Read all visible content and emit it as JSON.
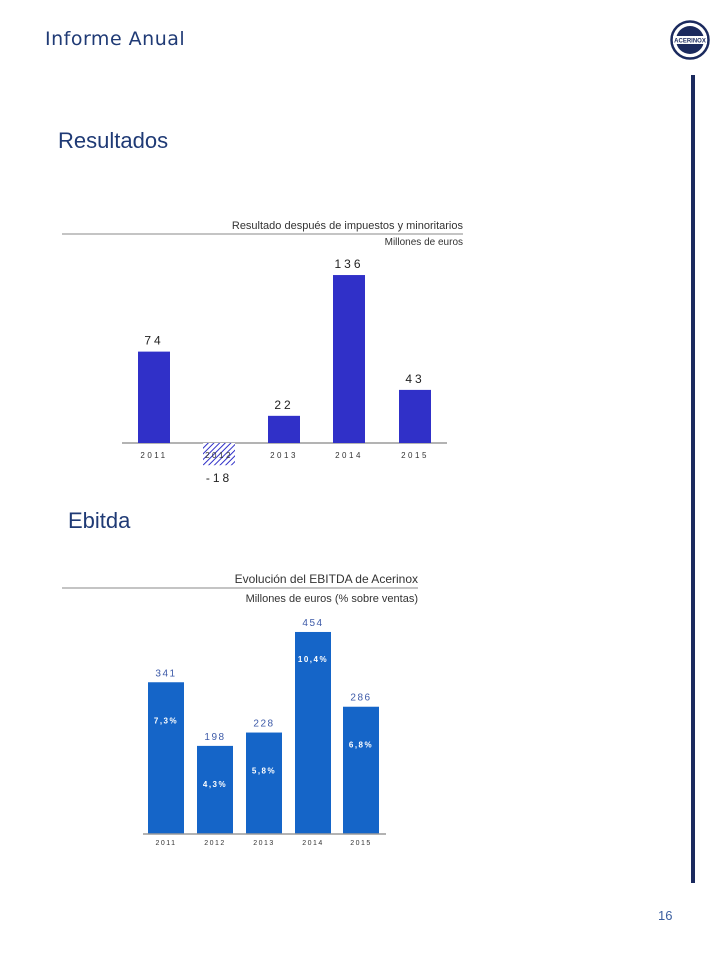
{
  "header": {
    "title": "Informe Anual",
    "logo_text": "ACERINOX"
  },
  "sections": {
    "results_title": "Resultados",
    "ebitda_title": "Ebitda"
  },
  "page": {
    "number": "16"
  },
  "colors": {
    "results_bar": "#3030c8",
    "ebitda_bar": "#1565c8",
    "accent_navy": "#1b2a5e",
    "text_blue": "#1f3a75"
  },
  "chart_data": [
    {
      "type": "bar",
      "title": "Resultado después de impuestos y minoritarios",
      "subtitle": "Millones de euros",
      "categories": [
        "2011",
        "2012",
        "2013",
        "2014",
        "2015"
      ],
      "values": [
        74,
        -18,
        22,
        136,
        43
      ],
      "value_labels": [
        "74",
        "-18",
        "22",
        "136",
        "43"
      ],
      "ylim": [
        -18,
        136
      ],
      "grid": false,
      "legend": "none",
      "negative_style": "hatched"
    },
    {
      "type": "bar",
      "title": "Evolución del EBITDA de Acerinox",
      "subtitle": "Millones de euros (% sobre ventas)",
      "categories": [
        "2011",
        "2012",
        "2013",
        "2014",
        "2015"
      ],
      "values": [
        341,
        198,
        228,
        454,
        286
      ],
      "value_labels": [
        "341",
        "198",
        "228",
        "454",
        "286"
      ],
      "pct_labels": [
        "7,3%",
        "4,3%",
        "5,8%",
        "10,4%",
        "6,8%"
      ],
      "ylim": [
        0,
        454
      ],
      "grid": false,
      "legend": "none"
    }
  ]
}
